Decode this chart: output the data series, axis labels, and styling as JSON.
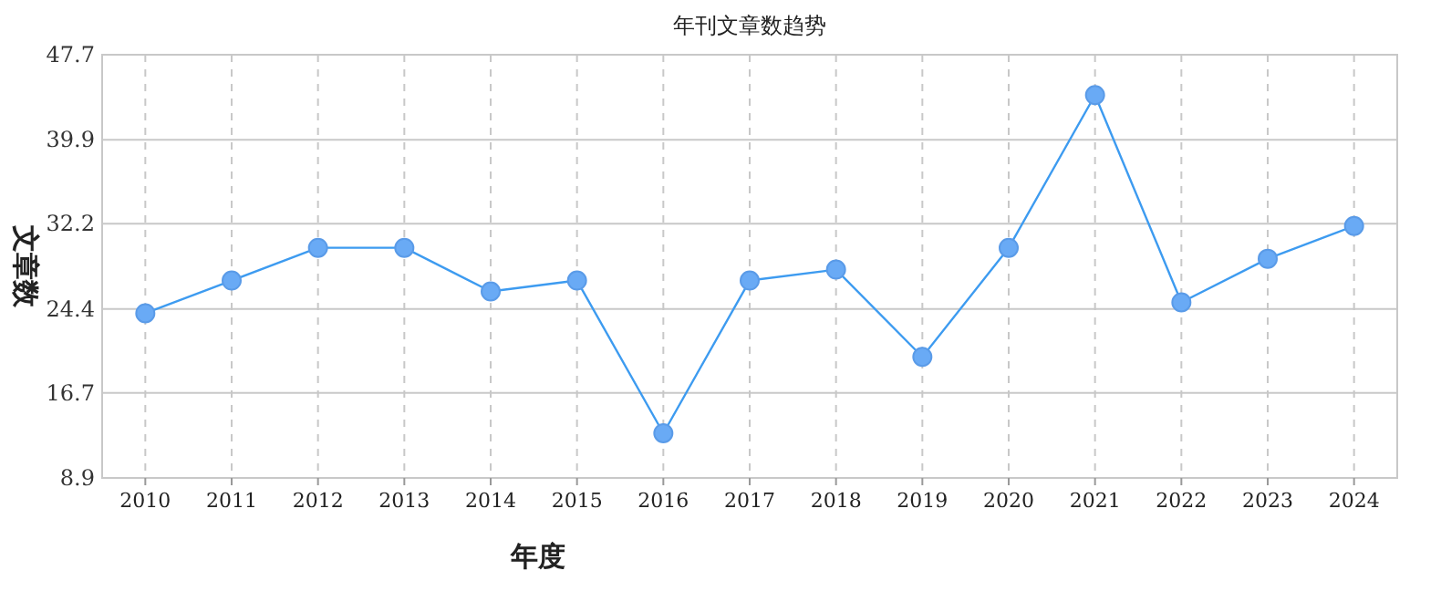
{
  "chart_data": {
    "type": "line",
    "title": "年刊文章数趋势",
    "xlabel": "年度",
    "ylabel": "文章数",
    "categories": [
      "2010",
      "2011",
      "2012",
      "2013",
      "2014",
      "2015",
      "2016",
      "2017",
      "2018",
      "2019",
      "2020",
      "2021",
      "2022",
      "2023",
      "2024"
    ],
    "series": [
      {
        "color": "#3d9bf0",
        "values": [
          24,
          27,
          30,
          30,
          26,
          27,
          13,
          27,
          28,
          20,
          30,
          44,
          25,
          29,
          32
        ]
      }
    ],
    "ylim": [
      8.9,
      47.7
    ],
    "yticks": [
      8.9,
      16.7,
      24.4,
      32.2,
      39.9,
      47.7
    ],
    "grid": true,
    "marker": "circle",
    "line_style": "solid"
  }
}
